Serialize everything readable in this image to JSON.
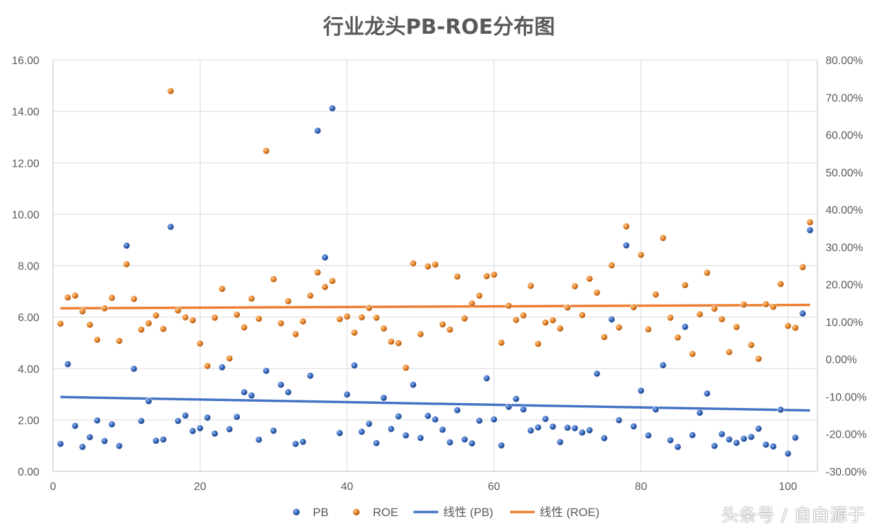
{
  "chart_data": {
    "type": "scatter",
    "title": "行业龙头PB-ROE分布图",
    "xlim": [
      0,
      104
    ],
    "ylim_left": [
      0,
      16
    ],
    "ylim_right": [
      -0.3,
      0.8
    ],
    "x_ticks": [
      "0",
      "20",
      "40",
      "60",
      "80",
      "100"
    ],
    "y_left_ticks": [
      "0.00",
      "2.00",
      "4.00",
      "6.00",
      "8.00",
      "10.00",
      "12.00",
      "14.00",
      "16.00"
    ],
    "y_right_ticks": [
      "-30.00%",
      "-20.00%",
      "-10.00%",
      "0.00%",
      "10.00%",
      "20.00%",
      "30.00%",
      "40.00%",
      "50.00%",
      "60.00%",
      "70.00%",
      "80.00%"
    ],
    "grid": true,
    "legend_position": "bottom",
    "series": [
      {
        "name": "PB",
        "axis": "left",
        "color": "#2f5fb3",
        "x": [
          1,
          2,
          3,
          4,
          5,
          6,
          7,
          8,
          9,
          10,
          11,
          12,
          13,
          14,
          15,
          16,
          17,
          18,
          19,
          20,
          21,
          22,
          23,
          24,
          25,
          26,
          27,
          28,
          29,
          30,
          31,
          32,
          33,
          34,
          35,
          36,
          37,
          38,
          39,
          40,
          41,
          42,
          43,
          44,
          45,
          46,
          47,
          48,
          49,
          50,
          51,
          52,
          53,
          54,
          55,
          56,
          57,
          58,
          59,
          60,
          61,
          62,
          63,
          64,
          65,
          66,
          67,
          68,
          69,
          70,
          71,
          72,
          73,
          74,
          75,
          76,
          77,
          78,
          79,
          80,
          81,
          82,
          83,
          84,
          85,
          86,
          87,
          88,
          89,
          90,
          91,
          92,
          93,
          94,
          95,
          96,
          97,
          98,
          99,
          100,
          101,
          102,
          103
        ],
        "values": [
          1.07,
          4.17,
          1.77,
          0.95,
          1.33,
          1.98,
          1.18,
          1.83,
          0.99,
          8.78,
          3.99,
          1.96,
          2.73,
          1.19,
          1.24,
          9.51,
          1.96,
          2.17,
          1.57,
          1.68,
          2.09,
          1.47,
          4.05,
          1.64,
          2.12,
          3.08,
          2.95,
          1.23,
          3.91,
          1.58,
          3.37,
          3.08,
          1.07,
          1.15,
          3.72,
          13.25,
          8.32,
          14.12,
          1.49,
          2.99,
          4.12,
          1.54,
          1.85,
          1.1,
          2.86,
          1.65,
          2.14,
          1.4,
          3.37,
          1.3,
          2.16,
          2.02,
          1.62,
          1.13,
          2.38,
          1.24,
          1.09,
          1.97,
          3.62,
          2.02,
          1.01,
          2.51,
          2.82,
          2.41,
          1.59,
          1.71,
          2.04,
          1.74,
          1.14,
          1.7,
          1.68,
          1.51,
          1.6,
          3.8,
          1.29,
          5.91,
          1.99,
          8.79,
          1.75,
          3.14,
          1.4,
          2.41,
          4.13,
          1.21,
          0.95,
          5.62,
          1.41,
          2.28,
          3.03,
          0.99,
          1.45,
          1.24,
          1.11,
          1.27,
          1.34,
          1.66,
          1.04,
          0.97,
          2.4,
          0.69,
          1.31,
          6.14,
          9.38
        ]
      },
      {
        "name": "ROE",
        "axis": "right",
        "color": "#e07a1f",
        "x": [
          1,
          2,
          3,
          4,
          5,
          6,
          7,
          8,
          9,
          10,
          11,
          12,
          13,
          14,
          15,
          16,
          17,
          18,
          19,
          20,
          21,
          22,
          23,
          24,
          25,
          26,
          27,
          28,
          29,
          30,
          31,
          32,
          33,
          34,
          35,
          36,
          37,
          38,
          39,
          40,
          41,
          42,
          43,
          44,
          45,
          46,
          47,
          48,
          49,
          50,
          51,
          52,
          53,
          54,
          55,
          56,
          57,
          58,
          59,
          60,
          61,
          62,
          63,
          64,
          65,
          66,
          67,
          68,
          69,
          70,
          71,
          72,
          73,
          74,
          75,
          76,
          77,
          78,
          79,
          80,
          81,
          82,
          83,
          84,
          85,
          86,
          87,
          88,
          89,
          90,
          91,
          92,
          93,
          94,
          95,
          96,
          97,
          98,
          99,
          100,
          101,
          102,
          103
        ],
        "values": [
          0.095,
          0.165,
          0.17,
          0.128,
          0.092,
          0.052,
          0.136,
          0.164,
          0.049,
          0.254,
          0.161,
          0.079,
          0.096,
          0.117,
          0.081,
          0.717,
          0.13,
          0.112,
          0.104,
          0.042,
          -0.018,
          0.111,
          0.188,
          0.002,
          0.119,
          0.085,
          0.162,
          0.108,
          0.557,
          0.214,
          0.096,
          0.155,
          0.067,
          0.101,
          0.17,
          0.232,
          0.193,
          0.209,
          0.107,
          0.114,
          0.071,
          0.112,
          0.137,
          0.111,
          0.082,
          0.047,
          0.043,
          -0.023,
          0.256,
          0.067,
          0.248,
          0.253,
          0.093,
          0.079,
          0.221,
          0.109,
          0.149,
          0.17,
          0.222,
          0.226,
          0.044,
          0.143,
          0.105,
          0.117,
          0.196,
          0.041,
          0.098,
          0.104,
          0.082,
          0.138,
          0.195,
          0.118,
          0.215,
          0.178,
          0.059,
          0.251,
          0.085,
          0.355,
          0.139,
          0.279,
          0.08,
          0.173,
          0.324,
          0.111,
          0.058,
          0.198,
          0.014,
          0.12,
          0.231,
          0.135,
          0.107,
          0.019,
          0.086,
          0.146,
          0.038,
          0.001,
          0.147,
          0.14,
          0.201,
          0.089,
          0.084,
          0.246,
          0.366
        ]
      },
      {
        "name": "线性 (PB)",
        "axis": "left",
        "type": "trendline",
        "color": "#4472c4",
        "x": [
          1,
          103
        ],
        "values": [
          2.89,
          2.37
        ]
      },
      {
        "name": "线性 (ROE)",
        "axis": "right",
        "type": "trendline",
        "color": "#ed7d31",
        "x": [
          1,
          103
        ],
        "values": [
          0.136,
          0.145
        ]
      }
    ]
  },
  "watermark": "头条号 / 自由源于"
}
